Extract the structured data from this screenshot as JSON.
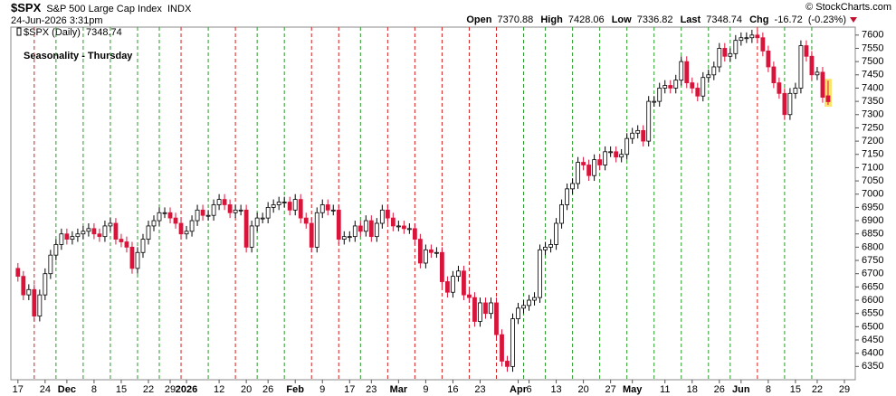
{
  "chart_data": {
    "type": "candlestick",
    "symbol": "$SPX",
    "name": "S&P 500 Large Cap Index",
    "exchange": "INDX",
    "timestamp": "24-Jun-2026 3:31pm",
    "watermark": "© StockCharts.com",
    "legend": "$SPX (Daily)",
    "annotation": "Seasonality - Thursday",
    "stat_labels": [
      "Open",
      "High",
      "Low",
      "Last",
      "Chg"
    ],
    "change": -16.72,
    "change_label": "(-0.23%)",
    "up_color": "#ffffff",
    "down_color": "#d8143a",
    "annotation_color": "#1a1adc",
    "ylim": [
      6300,
      7630
    ],
    "yticks": [
      6350,
      6400,
      6450,
      6500,
      6550,
      6600,
      6650,
      6700,
      6750,
      6800,
      6850,
      6900,
      6950,
      7000,
      7050,
      7100,
      7150,
      7200,
      7250,
      7300,
      7350,
      7400,
      7450,
      7500,
      7550,
      7600
    ],
    "grid": false,
    "xlim": [
      -1.3,
      154
    ],
    "xticks": [
      {
        "value": 0,
        "label": "17"
      },
      {
        "value": 5,
        "label": "24"
      },
      {
        "value": 9,
        "label": "Dec"
      },
      {
        "value": 14,
        "label": "8"
      },
      {
        "value": 19,
        "label": "15"
      },
      {
        "value": 24,
        "label": "22"
      },
      {
        "value": 28,
        "label": "29"
      },
      {
        "value": 31,
        "label": "2026"
      },
      {
        "value": 37,
        "label": "12"
      },
      {
        "value": 42,
        "label": "20"
      },
      {
        "value": 46,
        "label": "26"
      },
      {
        "value": 51,
        "label": "Feb"
      },
      {
        "value": 56,
        "label": "9"
      },
      {
        "value": 61,
        "label": "17"
      },
      {
        "value": 65,
        "label": "23"
      },
      {
        "value": 70,
        "label": "Mar"
      },
      {
        "value": 75,
        "label": "9"
      },
      {
        "value": 80,
        "label": "16"
      },
      {
        "value": 85,
        "label": "23"
      },
      {
        "value": 92,
        "label": "Apr"
      },
      {
        "value": 94,
        "label": "6"
      },
      {
        "value": 99,
        "label": "13"
      },
      {
        "value": 104,
        "label": "20"
      },
      {
        "value": 109,
        "label": "27"
      },
      {
        "value": 113,
        "label": "May"
      },
      {
        "value": 119,
        "label": "11"
      },
      {
        "value": 124,
        "label": "18"
      },
      {
        "value": 129,
        "label": "26"
      },
      {
        "value": 133,
        "label": "Jun"
      },
      {
        "value": 138,
        "label": "8"
      },
      {
        "value": 143,
        "label": "15"
      },
      {
        "value": 147,
        "label": "22"
      },
      {
        "value": 152,
        "label": "29"
      }
    ],
    "thursday_lines": {
      "index": [
        3,
        7,
        12,
        17,
        22,
        26,
        30,
        35,
        40,
        44,
        49,
        54,
        59,
        63,
        68,
        73,
        78,
        83,
        88,
        93,
        97,
        102,
        107,
        112,
        117,
        122,
        127,
        131,
        136,
        141,
        146
      ],
      "color": [
        "#d42020",
        "#2a9a2a",
        "#2a9a2a",
        "#2a9a2a",
        "#2a9a2a",
        "#2a9a2a",
        "#d42020",
        "#2a9a2a",
        "#d42020",
        "#2a9a2a",
        "#2a9a2a",
        "#d42020",
        "#d42020",
        "#2a9a2a",
        "#d42020",
        "#d42020",
        "#d42020",
        "#d42020",
        "#d42020",
        "#2a9a2a",
        "#2a9a2a",
        "#2a9a2a",
        "#2a9a2a",
        "#2a9a2a",
        "#2a9a2a",
        "#2a9a2a",
        "#2a9a2a",
        "#2a9a2a",
        "#d42020",
        "#2a9a2a",
        "#2a9a2a"
      ]
    },
    "open": [
      6720,
      6690,
      6620,
      6640,
      6540,
      6620,
      6700,
      6770,
      6810,
      6850,
      6830,
      6840,
      6850,
      6860,
      6870,
      6850,
      6840,
      6880,
      6890,
      6830,
      6820,
      6800,
      6720,
      6780,
      6830,
      6880,
      6900,
      6930,
      6930,
      6910,
      6890,
      6850,
      6860,
      6900,
      6940,
      6920,
      6920,
      6960,
      6980,
      6960,
      6930,
      6940,
      6940,
      6800,
      6880,
      6910,
      6910,
      6950,
      6960,
      6970,
      6970,
      6940,
      6980,
      6910,
      6890,
      6800,
      6930,
      6960,
      6940,
      6940,
      6830,
      6840,
      6840,
      6880,
      6860,
      6900,
      6840,
      6890,
      6940,
      6910,
      6880,
      6880,
      6870,
      6870,
      6830,
      6740,
      6790,
      6780,
      6780,
      6670,
      6630,
      6690,
      6710,
      6620,
      6610,
      6520,
      6590,
      6550,
      6590,
      6470,
      6370,
      6350,
      6530,
      6570,
      6580,
      6600,
      6610,
      6790,
      6800,
      6810,
      6890,
      6960,
      7020,
      7040,
      7120,
      7110,
      7070,
      7130,
      7110,
      7160,
      7160,
      7140,
      7150,
      7210,
      7230,
      7240,
      7200,
      7350,
      7350,
      7400,
      7410,
      7400,
      7430,
      7500,
      7420,
      7400,
      7370,
      7440,
      7450,
      7480,
      7550,
      7520,
      7530,
      7580,
      7590,
      7590,
      7600,
      7590,
      7540,
      7480,
      7420,
      7380,
      7300,
      7380,
      7400,
      7560,
      7520,
      7450,
      7460,
      7370.88
    ],
    "high": [
      6740,
      6710,
      6660,
      6660,
      6640,
      6720,
      6790,
      6830,
      6870,
      6870,
      6860,
      6870,
      6880,
      6890,
      6890,
      6870,
      6900,
      6910,
      6910,
      6850,
      6840,
      6820,
      6800,
      6850,
      6900,
      6920,
      6950,
      6950,
      6950,
      6930,
      6910,
      6880,
      6920,
      6960,
      6960,
      6940,
      6980,
      7000,
      7000,
      6980,
      6960,
      6960,
      6960,
      6900,
      6930,
      6930,
      6970,
      6980,
      6990,
      6990,
      6990,
      7000,
      7000,
      6930,
      6910,
      6950,
      6980,
      6980,
      6960,
      6960,
      6860,
      6860,
      6900,
      6900,
      6920,
      6920,
      6910,
      6960,
      6960,
      6930,
      6900,
      6900,
      6890,
      6890,
      6850,
      6810,
      6810,
      6800,
      6800,
      6690,
      6710,
      6730,
      6730,
      6640,
      6630,
      6610,
      6610,
      6610,
      6610,
      6490,
      6390,
      6550,
      6590,
      6600,
      6620,
      6630,
      6810,
      6820,
      6830,
      6910,
      6980,
      7040,
      7060,
      7140,
      7140,
      7130,
      7150,
      7150,
      7180,
      7180,
      7180,
      7170,
      7230,
      7250,
      7260,
      7260,
      7370,
      7370,
      7420,
      7430,
      7430,
      7450,
      7520,
      7520,
      7440,
      7420,
      7460,
      7470,
      7500,
      7570,
      7570,
      7550,
      7600,
      7610,
      7610,
      7620,
      7620,
      7610,
      7560,
      7500,
      7440,
      7400,
      7400,
      7420,
      7580,
      7580,
      7540,
      7480,
      7480,
      7428.06
    ],
    "low": [
      6670,
      6600,
      6600,
      6520,
      6520,
      6600,
      6680,
      6750,
      6790,
      6810,
      6810,
      6820,
      6830,
      6840,
      6830,
      6820,
      6820,
      6860,
      6810,
      6800,
      6780,
      6700,
      6700,
      6760,
      6810,
      6860,
      6880,
      6910,
      6890,
      6870,
      6830,
      6830,
      6840,
      6880,
      6900,
      6900,
      6900,
      6940,
      6940,
      6910,
      6910,
      6920,
      6780,
      6780,
      6860,
      6890,
      6890,
      6930,
      6940,
      6950,
      6920,
      6920,
      6890,
      6870,
      6780,
      6780,
      6910,
      6920,
      6920,
      6810,
      6810,
      6820,
      6820,
      6840,
      6840,
      6820,
      6820,
      6870,
      6890,
      6860,
      6860,
      6850,
      6850,
      6810,
      6720,
      6720,
      6760,
      6760,
      6650,
      6610,
      6610,
      6670,
      6600,
      6590,
      6500,
      6500,
      6530,
      6530,
      6450,
      6350,
      6330,
      6330,
      6510,
      6550,
      6560,
      6580,
      6590,
      6770,
      6780,
      6790,
      6870,
      6940,
      7000,
      7020,
      7090,
      7050,
      7050,
      7090,
      7090,
      7140,
      7120,
      7120,
      7130,
      7190,
      7210,
      7180,
      7180,
      7330,
      7330,
      7380,
      7380,
      7380,
      7410,
      7400,
      7380,
      7350,
      7350,
      7420,
      7430,
      7460,
      7500,
      7500,
      7510,
      7560,
      7570,
      7570,
      7570,
      7520,
      7460,
      7400,
      7360,
      7280,
      7280,
      7360,
      7380,
      7500,
      7430,
      7430,
      7345,
      7336.82
    ],
    "close": [
      6690,
      6620,
      6640,
      6540,
      6620,
      6700,
      6770,
      6810,
      6850,
      6830,
      6840,
      6850,
      6860,
      6870,
      6850,
      6840,
      6880,
      6890,
      6830,
      6820,
      6800,
      6720,
      6780,
      6830,
      6880,
      6900,
      6930,
      6930,
      6910,
      6890,
      6850,
      6860,
      6900,
      6940,
      6920,
      6920,
      6960,
      6980,
      6960,
      6930,
      6940,
      6940,
      6800,
      6880,
      6910,
      6910,
      6950,
      6960,
      6970,
      6970,
      6940,
      6980,
      6910,
      6890,
      6800,
      6930,
      6960,
      6940,
      6940,
      6830,
      6840,
      6840,
      6880,
      6860,
      6900,
      6840,
      6890,
      6940,
      6910,
      6880,
      6880,
      6870,
      6870,
      6830,
      6740,
      6790,
      6780,
      6780,
      6670,
      6630,
      6690,
      6710,
      6620,
      6610,
      6520,
      6590,
      6550,
      6590,
      6470,
      6370,
      6350,
      6530,
      6570,
      6580,
      6600,
      6610,
      6790,
      6800,
      6810,
      6890,
      6960,
      7020,
      7040,
      7120,
      7110,
      7070,
      7130,
      7110,
      7160,
      7160,
      7140,
      7150,
      7210,
      7230,
      7240,
      7200,
      7350,
      7350,
      7400,
      7410,
      7400,
      7430,
      7500,
      7420,
      7400,
      7370,
      7440,
      7450,
      7480,
      7550,
      7520,
      7530,
      7580,
      7590,
      7590,
      7600,
      7590,
      7540,
      7480,
      7420,
      7380,
      7300,
      7380,
      7400,
      7560,
      7520,
      7450,
      7460,
      7365.46,
      7348.74
    ]
  }
}
